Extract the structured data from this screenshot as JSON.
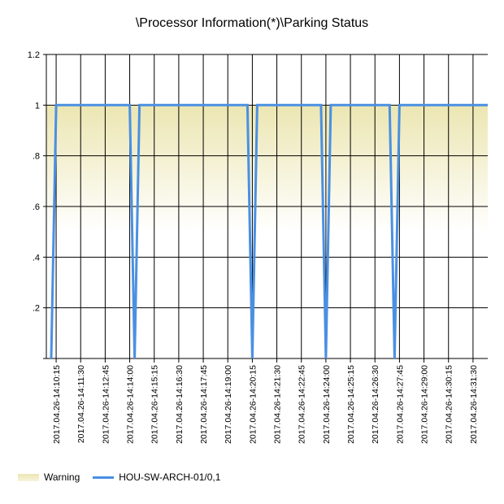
{
  "chart_data": {
    "type": "line",
    "title": "\\Processor Information(*)\\Parking Status",
    "xlabel": "",
    "ylabel": "",
    "ylim": [
      0,
      1.2
    ],
    "y_ticks": [
      {
        "value": 0,
        "label": ""
      },
      {
        "value": 0.2,
        "label": ".2"
      },
      {
        "value": 0.4,
        "label": ".4"
      },
      {
        "value": 0.6,
        "label": ".6"
      },
      {
        "value": 0.8,
        "label": ".8"
      },
      {
        "value": 1.0,
        "label": "1"
      },
      {
        "value": 1.2,
        "label": "1.2"
      }
    ],
    "x_range": [
      "2017.04.26-14:09:45",
      "2017.04.26-14:32:15"
    ],
    "x_ticks": [
      "2017.04.26-14:10:15",
      "2017.04.26-14:11:30",
      "2017.04.26-14:12:45",
      "2017.04.26-14:14:00",
      "2017.04.26-14:15:15",
      "2017.04.26-14:16:30",
      "2017.04.26-14:17:45",
      "2017.04.26-14:19:00",
      "2017.04.26-14:20:15",
      "2017.04.26-14:21:30",
      "2017.04.26-14:22:45",
      "2017.04.26-14:24:00",
      "2017.04.26-14:25:15",
      "2017.04.26-14:26:30",
      "2017.04.26-14:27:45",
      "2017.04.26-14:29:00",
      "2017.04.26-14:30:15",
      "2017.04.26-14:31:30"
    ],
    "grid": true,
    "legend_position": "bottom-left",
    "series": [
      {
        "name": "Warning",
        "kind": "band",
        "color": "#ece6b2",
        "from": 0.5,
        "to": 1.0
      },
      {
        "name": "HOU-SW-ARCH-01/0,1",
        "kind": "line",
        "color": "#4a90e2",
        "points": [
          [
            "2017.04.26-14:10:00",
            0
          ],
          [
            "2017.04.26-14:10:15",
            1
          ],
          [
            "2017.04.26-14:14:00",
            1
          ],
          [
            "2017.04.26-14:14:15",
            0
          ],
          [
            "2017.04.26-14:14:30",
            1
          ],
          [
            "2017.04.26-14:20:00",
            1
          ],
          [
            "2017.04.26-14:20:15",
            0
          ],
          [
            "2017.04.26-14:20:30",
            1
          ],
          [
            "2017.04.26-14:23:45",
            1
          ],
          [
            "2017.04.26-14:24:00",
            0
          ],
          [
            "2017.04.26-14:24:15",
            1
          ],
          [
            "2017.04.26-14:27:15",
            1
          ],
          [
            "2017.04.26-14:27:30",
            0
          ],
          [
            "2017.04.26-14:27:45",
            1
          ],
          [
            "2017.04.26-14:32:15",
            1
          ]
        ]
      }
    ]
  }
}
